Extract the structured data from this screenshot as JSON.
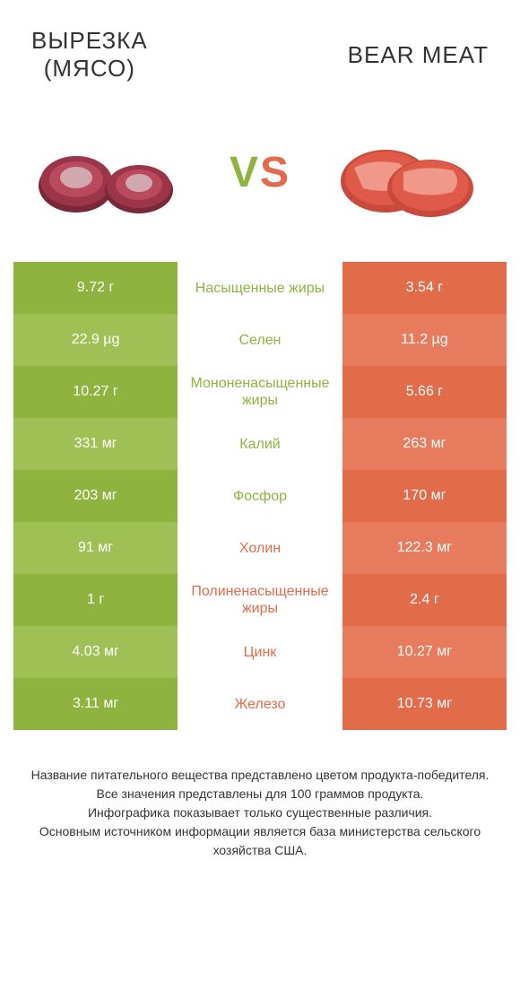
{
  "header": {
    "left_title": "ВЫРЕЗКА",
    "left_subtitle": "(МЯСО)",
    "right_title": "BEAR MEAT"
  },
  "vs": {
    "v": "V",
    "s": "S"
  },
  "colors": {
    "green_dark": "#8fb33f",
    "green_light": "#9fc054",
    "orange_dark": "#e26b4a",
    "orange_light": "#e67c5d"
  },
  "rows": [
    {
      "left": "9.72 г",
      "mid": "Насыщенные жиры",
      "right": "3.54 г",
      "winner": "left"
    },
    {
      "left": "22.9 µg",
      "mid": "Селен",
      "right": "11.2 µg",
      "winner": "left"
    },
    {
      "left": "10.27 г",
      "mid": "Мононенасыщенные жиры",
      "right": "5.66 г",
      "winner": "left"
    },
    {
      "left": "331 мг",
      "mid": "Калий",
      "right": "263 мг",
      "winner": "left"
    },
    {
      "left": "203 мг",
      "mid": "Фосфор",
      "right": "170 мг",
      "winner": "left"
    },
    {
      "left": "91 мг",
      "mid": "Холин",
      "right": "122.3 мг",
      "winner": "right"
    },
    {
      "left": "1 г",
      "mid": "Полиненасыщенные жиры",
      "right": "2.4 г",
      "winner": "right"
    },
    {
      "left": "4.03 мг",
      "mid": "Цинк",
      "right": "10.27 мг",
      "winner": "right"
    },
    {
      "left": "3.11 мг",
      "mid": "Железо",
      "right": "10.73 мг",
      "winner": "right"
    }
  ],
  "footer": {
    "line1": "Название питательного вещества представлено цветом продукта-победителя.",
    "line2": "Все значения представлены для 100 граммов продукта.",
    "line3": "Инфографика показывает только существенные различия.",
    "line4": "Основным источником информации является база министерства сельского хозяйства США."
  }
}
